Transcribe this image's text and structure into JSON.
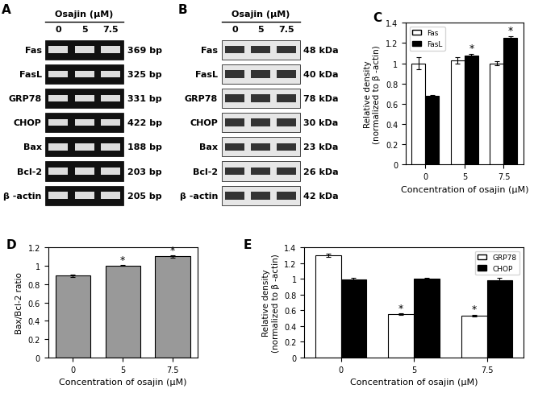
{
  "gels": [
    {
      "label": "A",
      "header": "Osajin (μM)",
      "lanes": [
        "0",
        "5",
        "7.5"
      ],
      "style": "dark",
      "rows": [
        {
          "name": "Fas",
          "size": "369 bp"
        },
        {
          "name": "FasL",
          "size": "325 bp"
        },
        {
          "name": "GRP78",
          "size": "331 bp"
        },
        {
          "name": "CHOP",
          "size": "422 bp"
        },
        {
          "name": "Bax",
          "size": "188 bp"
        },
        {
          "name": "Bcl-2",
          "size": "203 bp"
        },
        {
          "name": "β -actin",
          "size": "205 bp"
        }
      ]
    },
    {
      "label": "B",
      "header": "Osajin (μM)",
      "lanes": [
        "0",
        "5",
        "7.5"
      ],
      "style": "light",
      "rows": [
        {
          "name": "Fas",
          "size": "48 kDa"
        },
        {
          "name": "FasL",
          "size": "40 kDa"
        },
        {
          "name": "GRP78",
          "size": "78 kDa"
        },
        {
          "name": "CHOP",
          "size": "30 kDa"
        },
        {
          "name": "Bax",
          "size": "23 kDa"
        },
        {
          "name": "Bcl-2",
          "size": "26 kDa"
        },
        {
          "name": "β -actin",
          "size": "42 kDa"
        }
      ]
    }
  ],
  "chart_data": [
    {
      "label": "C",
      "type": "bar",
      "categories": [
        "0",
        "5",
        "7.5"
      ],
      "x_label": "Concentration of osajin (μM)",
      "y_label": "Relative density\n(normalized to β -actin)",
      "series": [
        {
          "name": "Fas",
          "color": "#ffffff",
          "values": [
            1.0,
            1.03,
            1.0
          ],
          "errors": [
            0.06,
            0.03,
            0.02
          ]
        },
        {
          "name": "FasL",
          "color": "#000000",
          "values": [
            0.68,
            1.08,
            1.25
          ],
          "errors": [
            0.01,
            0.01,
            0.02
          ]
        }
      ],
      "ylim": [
        0,
        1.4
      ],
      "yticks": [
        0,
        0.2,
        0.4,
        0.6,
        0.8,
        1,
        1.2,
        1.4
      ],
      "legend": "upper left",
      "annotations": [
        {
          "text": "*",
          "category": "5",
          "series": "FasL"
        },
        {
          "text": "*",
          "category": "7.5",
          "series": "FasL"
        }
      ]
    },
    {
      "label": "D",
      "type": "bar",
      "categories": [
        "0",
        "5",
        "7.5"
      ],
      "x_label": "Concentration of osajin (μM)",
      "y_label": "Bax/Bcl-2 ratio",
      "series": [
        {
          "name": "Bax/Bcl-2 ratio",
          "color": "#999999",
          "values": [
            0.89,
            1.0,
            1.1
          ],
          "errors": [
            0.01,
            0.005,
            0.01
          ]
        }
      ],
      "ylim": [
        0,
        1.2
      ],
      "yticks": [
        0,
        0.2,
        0.4,
        0.6,
        0.8,
        1,
        1.2
      ],
      "annotations": [
        {
          "text": "*",
          "category": "5",
          "series": "Bax/Bcl-2 ratio"
        },
        {
          "text": "*",
          "category": "7.5",
          "series": "Bax/Bcl-2 ratio"
        }
      ]
    },
    {
      "label": "E",
      "type": "bar",
      "categories": [
        "0",
        "5",
        "7.5"
      ],
      "x_label": "Concentration of osajin (μM)",
      "y_label": "Relative density\n(normalized to β -actin)",
      "series": [
        {
          "name": "GRP78",
          "color": "#ffffff",
          "values": [
            1.3,
            0.55,
            0.53
          ],
          "errors": [
            0.02,
            0.01,
            0.01
          ]
        },
        {
          "name": "CHOP",
          "color": "#000000",
          "values": [
            0.99,
            1.0,
            0.98
          ],
          "errors": [
            0.02,
            0.01,
            0.03
          ]
        }
      ],
      "ylim": [
        0,
        1.4
      ],
      "yticks": [
        0,
        0.2,
        0.4,
        0.6,
        0.8,
        1,
        1.2,
        1.4
      ],
      "legend": "upper right",
      "annotations": [
        {
          "text": "*",
          "category": "5",
          "series": "GRP78"
        },
        {
          "text": "*",
          "category": "7.5",
          "series": "GRP78"
        }
      ]
    }
  ]
}
